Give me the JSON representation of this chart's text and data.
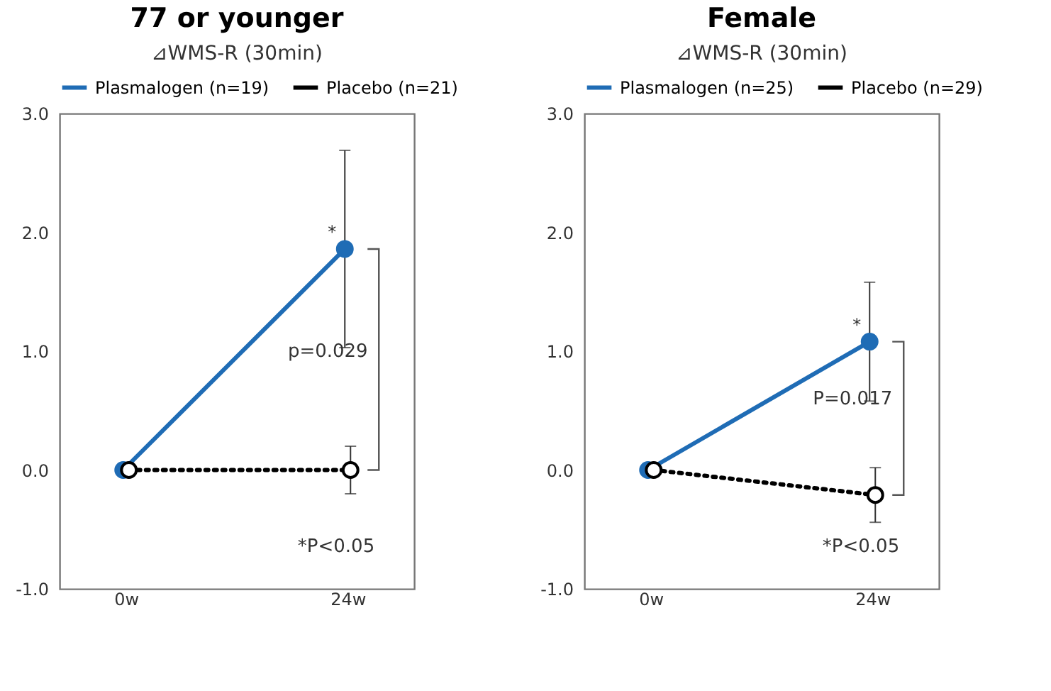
{
  "chart_data": [
    {
      "type": "line",
      "title": "77 or younger",
      "subtitle": "⊿WMS-R (30min)",
      "categories": [
        "0w",
        "24w"
      ],
      "series": [
        {
          "name": "Plasmalogen (n=19)",
          "color": "#1f6cb5",
          "values": [
            0,
            1.86
          ],
          "errors": [
            null,
            0.83
          ],
          "line_style": "solid"
        },
        {
          "name": "Placebo (n=21)",
          "color": "#000000",
          "values": [
            0,
            0
          ],
          "errors": [
            null,
            0.2
          ],
          "line_style": "dotted"
        }
      ],
      "ylim": [
        -1,
        3
      ],
      "yticks": [
        {
          "value": -1,
          "label": "-1.0"
        },
        {
          "value": 0,
          "label": "0.0"
        },
        {
          "value": 1,
          "label": "1.0"
        },
        {
          "value": 2,
          "label": "2.0"
        },
        {
          "value": 3,
          "label": "3.0"
        }
      ],
      "annotations": [
        {
          "text": "*",
          "x": "24w",
          "y": 1.86
        },
        {
          "text": "p=0.029",
          "x": "24w",
          "y": 1.0
        },
        "*P<0.05"
      ],
      "grid": false,
      "legend": "top",
      "marker": "circle"
    },
    {
      "type": "line",
      "title": "Female",
      "subtitle": "⊿WMS-R (30min)",
      "categories": [
        "0w",
        "24w"
      ],
      "series": [
        {
          "name": "Plasmalogen (n=25)",
          "color": "#1f6cb5",
          "values": [
            0,
            1.08
          ],
          "errors": [
            null,
            0.5
          ],
          "line_style": "solid"
        },
        {
          "name": "Placebo (n=29)",
          "color": "#000000",
          "values": [
            0,
            -0.21
          ],
          "errors": [
            null,
            0.23
          ],
          "line_style": "dotted"
        }
      ],
      "ylim": [
        -1,
        3
      ],
      "yticks": [
        {
          "value": -1,
          "label": "-1.0"
        },
        {
          "value": 0,
          "label": "0.0"
        },
        {
          "value": 1,
          "label": "1.0"
        },
        {
          "value": 2,
          "label": "2.0"
        },
        {
          "value": 3,
          "label": "3.0"
        }
      ],
      "annotations": [
        {
          "text": "*",
          "x": "24w",
          "y": 1.08
        },
        {
          "text": "P=0.017",
          "x": "24w",
          "y": 0.6
        },
        "*P<0.05"
      ],
      "grid": false,
      "legend": "top",
      "marker": "circle"
    }
  ]
}
